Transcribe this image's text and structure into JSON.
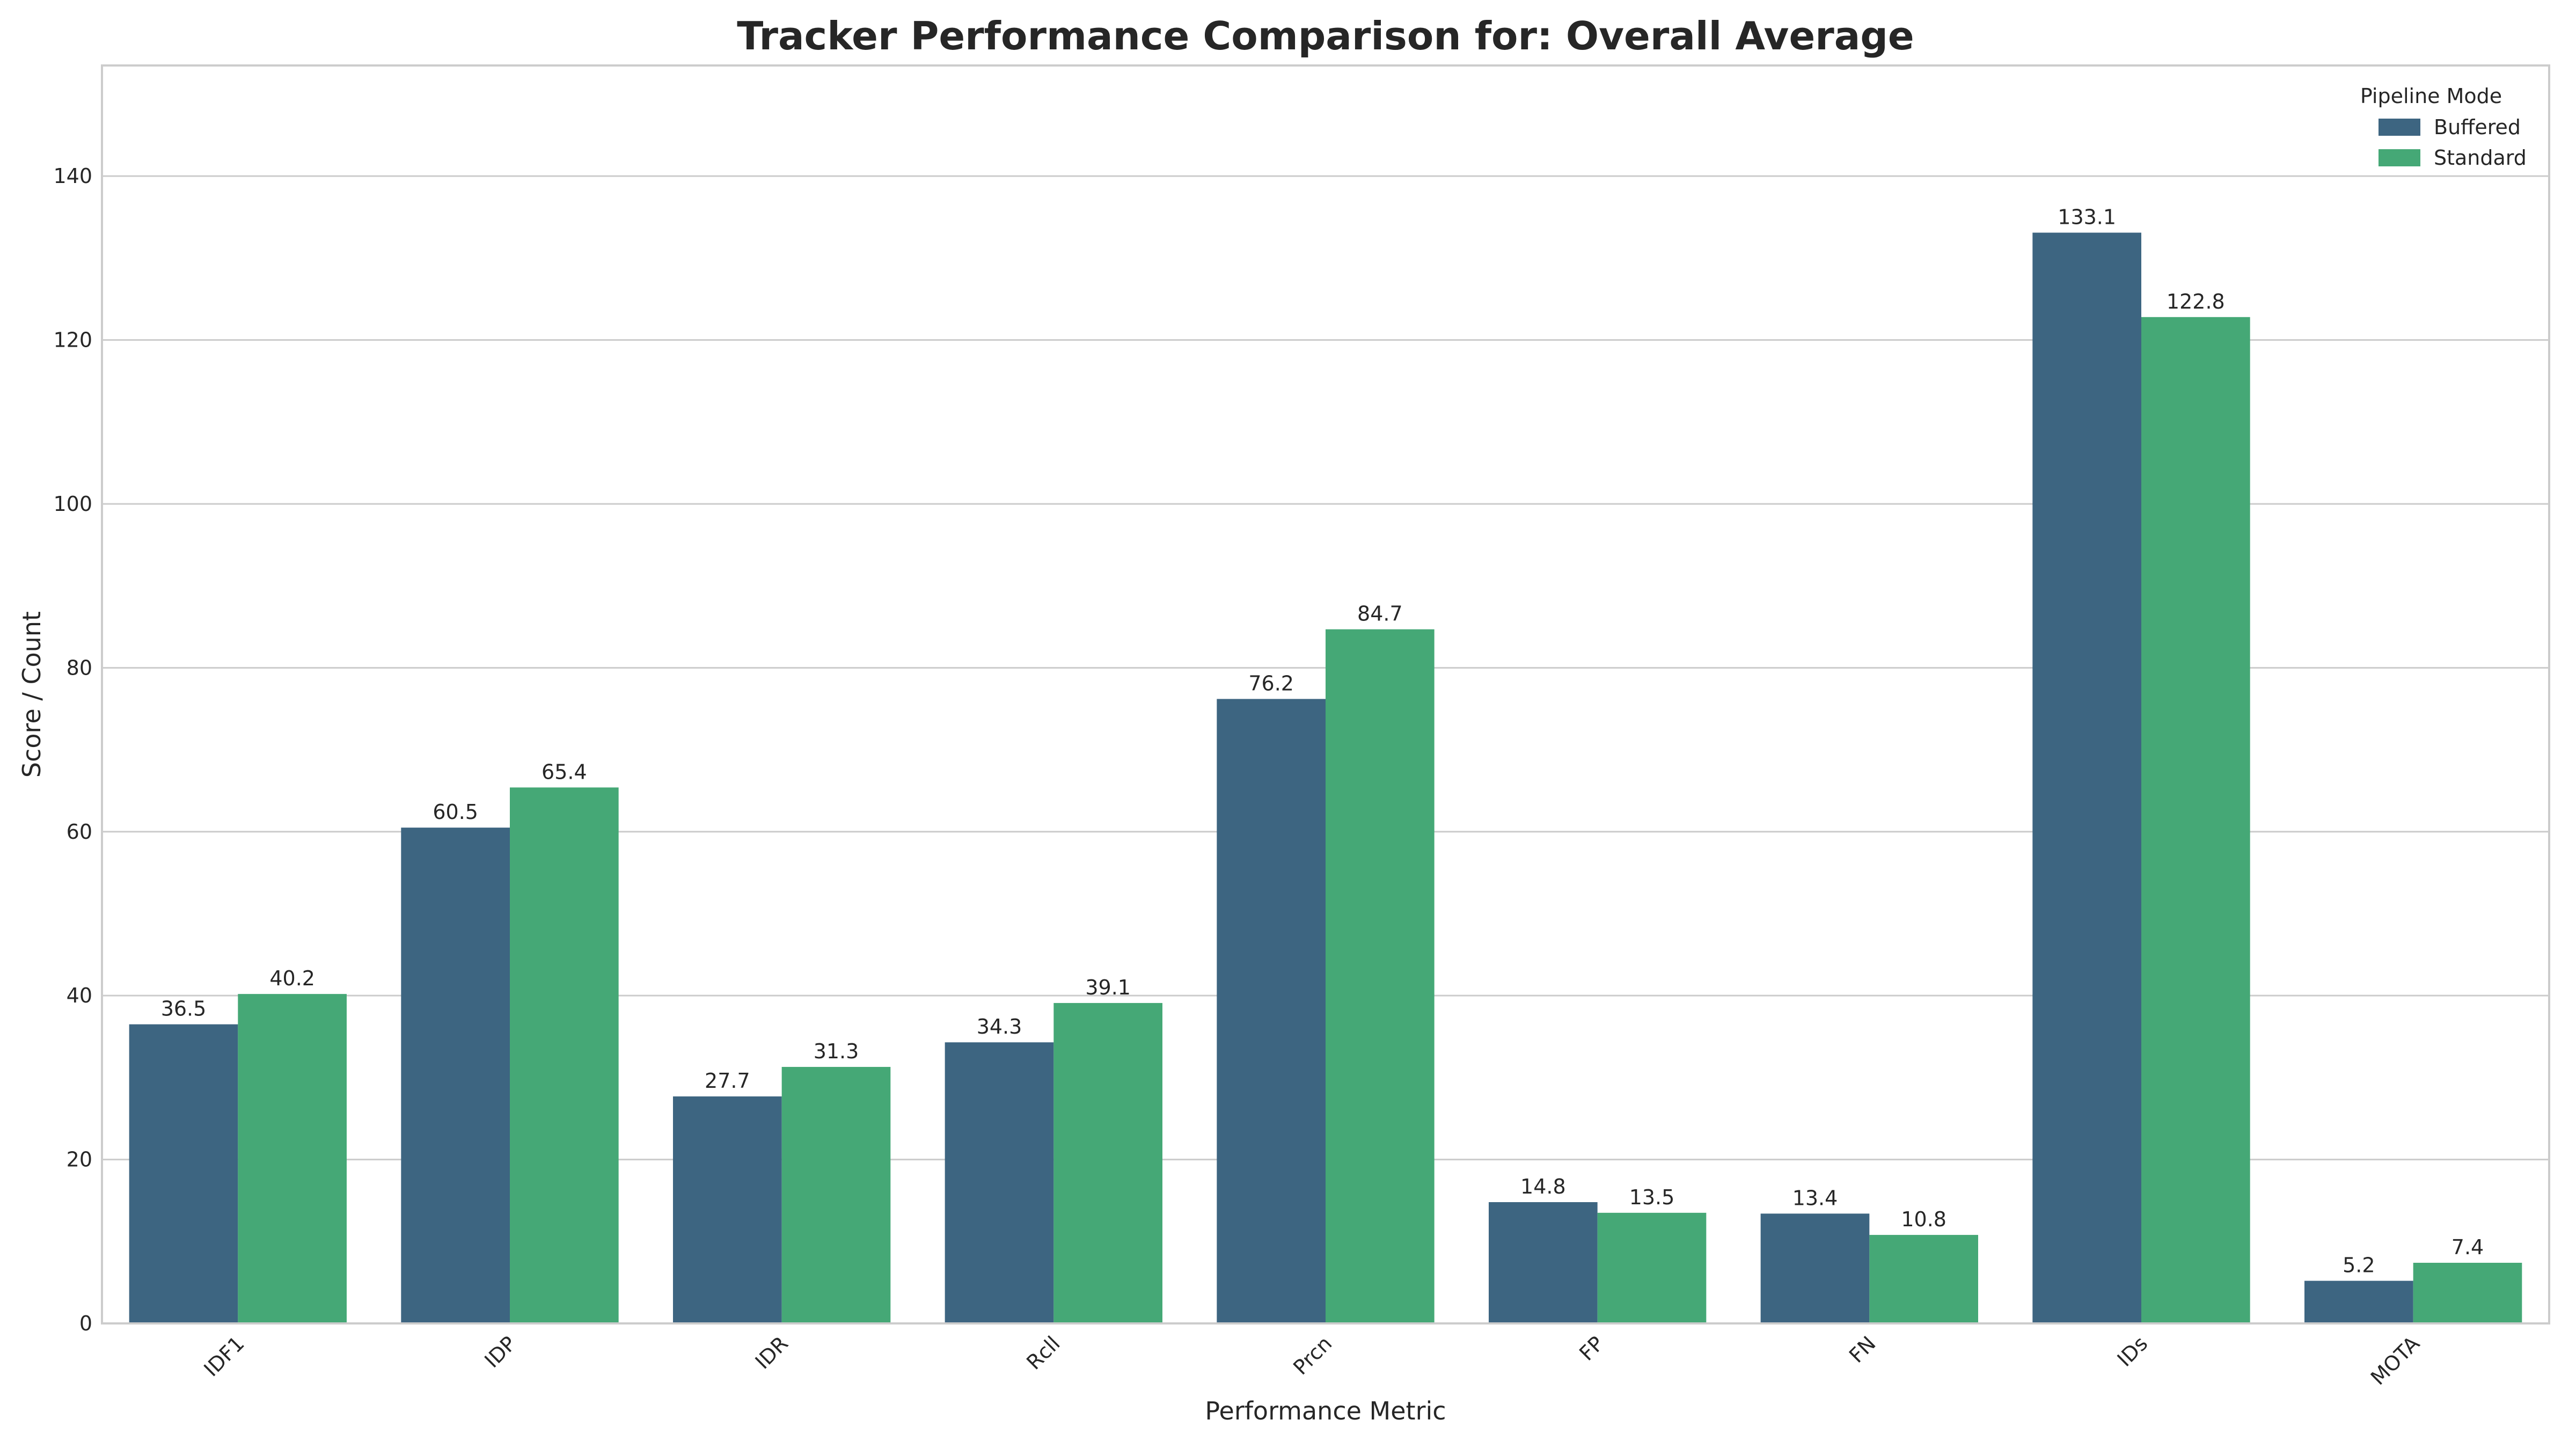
{
  "chart_data": {
    "type": "bar",
    "title": "Tracker Performance Comparison for: Overall Average",
    "xlabel": "Performance Metric",
    "ylabel": "Score / Count",
    "categories": [
      "IDF1",
      "IDP",
      "IDR",
      "Rcll",
      "Prcn",
      "FP",
      "FN",
      "IDs",
      "MOTA"
    ],
    "series": [
      {
        "name": "Buffered",
        "color": "#3d6581",
        "values": [
          36.5,
          60.5,
          27.7,
          34.3,
          76.2,
          14.8,
          13.4,
          133.1,
          5.2
        ]
      },
      {
        "name": "Standard",
        "color": "#45a876",
        "values": [
          40.2,
          65.4,
          31.3,
          39.1,
          84.7,
          13.5,
          10.8,
          122.8,
          7.4
        ]
      }
    ],
    "ylim": [
      0,
      153.5
    ],
    "yticks": [
      0,
      20,
      40,
      60,
      80,
      100,
      120,
      140
    ],
    "legend": {
      "title": "Pipeline Mode",
      "position": "top-right"
    },
    "grid": true,
    "value_labels": true
  }
}
